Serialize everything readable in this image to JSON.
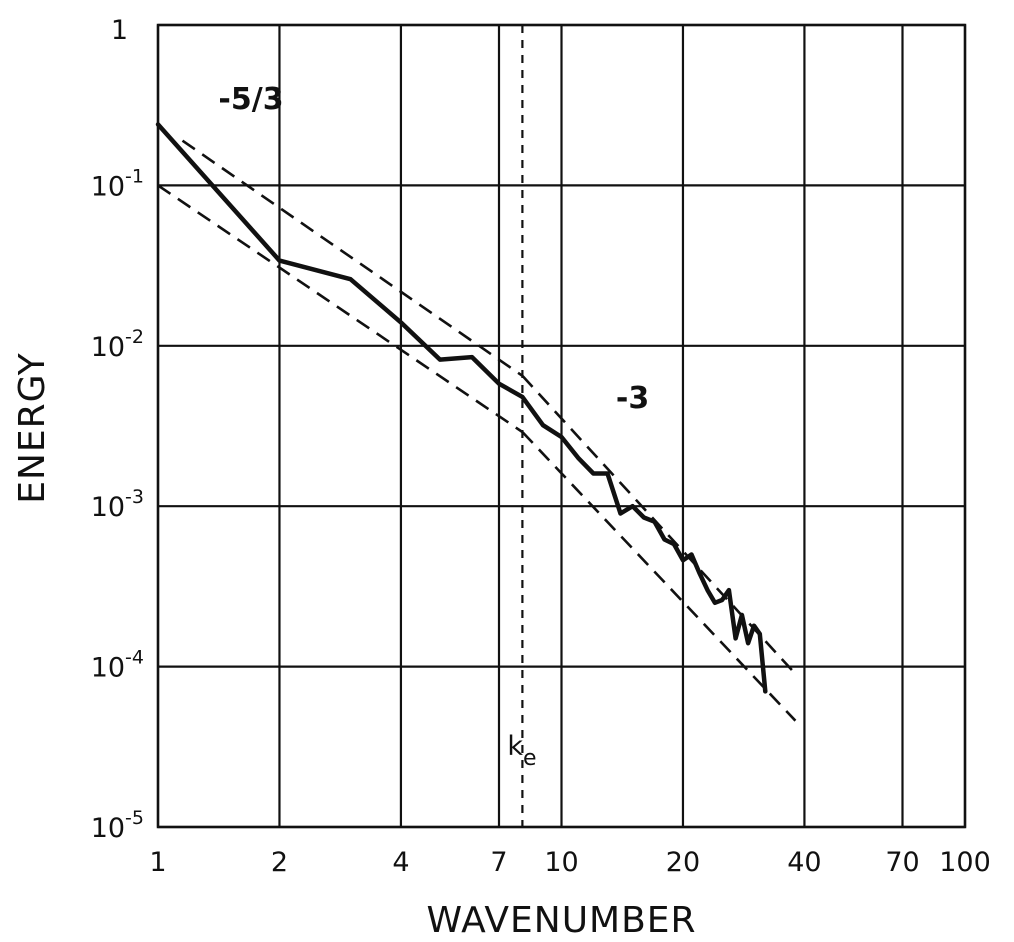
{
  "chart_data": {
    "type": "line",
    "xlabel": "WAVENUMBER",
    "ylabel": "ENERGY",
    "x_scale": "log",
    "y_scale": "log",
    "xlim": [
      1,
      100
    ],
    "ylim": [
      1e-05,
      1
    ],
    "grid": true,
    "x_ticks": [
      {
        "value": 1,
        "label": "1"
      },
      {
        "value": 2,
        "label": "2"
      },
      {
        "value": 4,
        "label": "4"
      },
      {
        "value": 7,
        "label": "7"
      },
      {
        "value": 10,
        "label": "10"
      },
      {
        "value": 20,
        "label": "20"
      },
      {
        "value": 40,
        "label": "40"
      },
      {
        "value": 70,
        "label": "70"
      },
      {
        "value": 100,
        "label": "100"
      }
    ],
    "y_ticks": [
      {
        "value": 1,
        "base": "1",
        "exp": ""
      },
      {
        "value": 0.1,
        "base": "10",
        "exp": "-1"
      },
      {
        "value": 0.01,
        "base": "10",
        "exp": "-2"
      },
      {
        "value": 0.001,
        "base": "10",
        "exp": "-3"
      },
      {
        "value": 0.0001,
        "base": "10",
        "exp": "-4"
      },
      {
        "value": 1e-05,
        "base": "10",
        "exp": "-5"
      }
    ],
    "series": [
      {
        "style": "solid",
        "x": [
          1,
          2,
          3,
          4,
          5,
          6,
          7,
          8,
          9,
          10,
          11,
          12,
          13,
          14,
          15,
          16,
          17,
          18,
          19,
          20,
          21,
          22,
          23,
          24,
          25,
          26,
          27,
          28,
          29,
          30,
          31,
          32
        ],
        "y": [
          0.24,
          0.034,
          0.026,
          0.014,
          0.0082,
          0.0085,
          0.0058,
          0.0048,
          0.0032,
          0.0027,
          0.002,
          0.0016,
          0.0016,
          0.0009,
          0.001,
          0.00085,
          0.0008,
          0.00062,
          0.00058,
          0.00046,
          0.0005,
          0.00038,
          0.0003,
          0.00025,
          0.00026,
          0.0003,
          0.00015,
          0.00021,
          0.00014,
          0.00018,
          0.00016,
          7e-05
        ]
      }
    ],
    "reference_lines": [
      {
        "style": "dashed",
        "x": [
          1,
          8
        ],
        "y": [
          0.1,
          0.0029
        ]
      },
      {
        "style": "dashed",
        "x": [
          8,
          38
        ],
        "y": [
          0.0029,
          4.6e-05
        ]
      },
      {
        "style": "dashed",
        "x": [
          1.15,
          8
        ],
        "y": [
          0.19,
          0.0065
        ]
      },
      {
        "style": "dashed",
        "x": [
          8,
          38
        ],
        "y": [
          0.0065,
          9e-05
        ]
      }
    ],
    "vertical_marker": {
      "x": 8,
      "label": "k",
      "label_sub": "e"
    },
    "annotations": [
      {
        "text": "-5/3",
        "x": 1.7,
        "y": 0.3
      },
      {
        "text": "-3",
        "x": 15,
        "y": 0.0041
      }
    ]
  }
}
